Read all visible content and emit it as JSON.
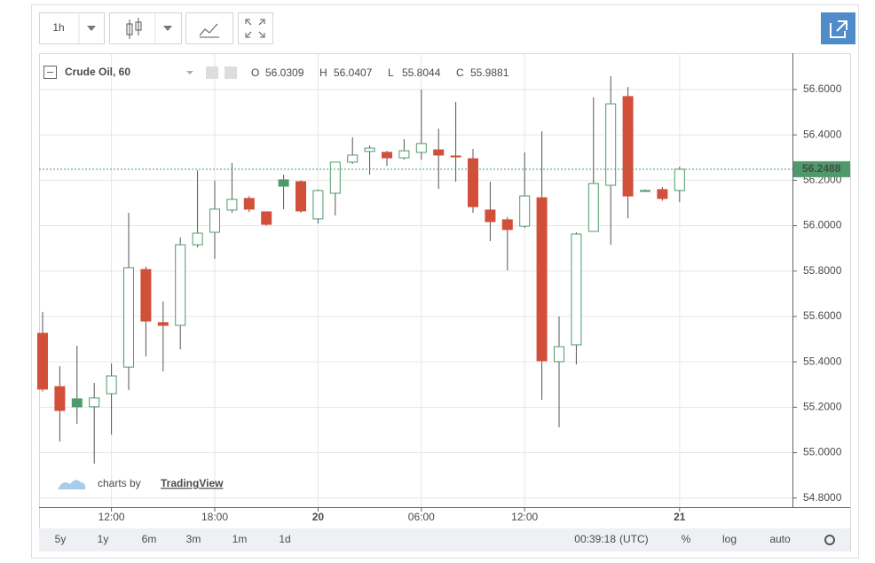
{
  "toolbar": {
    "interval": "1h"
  },
  "chart_data": {
    "type": "candlestick",
    "title": "Crude Oil, 60",
    "ohlc_legend": [
      {
        "label": "O",
        "value": 56.0309
      },
      {
        "label": "H",
        "value": 56.0407
      },
      {
        "label": "L",
        "value": 55.8044
      },
      {
        "label": "C",
        "value": 55.9881
      }
    ],
    "categories": [
      null,
      null,
      null,
      null,
      "12:00",
      null,
      null,
      null,
      null,
      null,
      "18:00",
      null,
      null,
      null,
      null,
      null,
      "20",
      null,
      null,
      null,
      null,
      null,
      "06:00",
      null,
      null,
      null,
      null,
      null,
      "12:00",
      null,
      null,
      null,
      null,
      null,
      null,
      null,
      null,
      "21"
    ],
    "open": [
      55.526,
      55.291,
      55.237,
      55.202,
      55.26,
      55.377,
      55.807,
      55.573,
      55.561,
      55.916,
      55.971,
      56.069,
      56.12,
      56.061,
      56.202,
      56.194,
      56.03,
      56.143,
      56.28,
      56.327,
      56.323,
      56.299,
      56.323,
      56.334,
      56.307,
      56.295,
      56.069,
      56.026,
      55.998,
      56.123,
      55.401,
      55.475,
      55.975,
      56.178,
      56.569,
      56.155,
      56.159,
      56.155
    ],
    "high": [
      55.62,
      55.381,
      55.471,
      55.307,
      55.393,
      56.057,
      55.82,
      55.666,
      55.948,
      56.244,
      56.198,
      56.276,
      56.13,
      56.061,
      56.225,
      56.2,
      56.16,
      56.28,
      56.389,
      56.354,
      56.33,
      56.381,
      56.6,
      56.428,
      56.545,
      56.338,
      56.194,
      56.038,
      56.323,
      56.416,
      55.6,
      55.971,
      56.565,
      56.659,
      56.611,
      56.16,
      56.17,
      56.26
    ],
    "low": [
      55.27,
      55.049,
      55.127,
      54.952,
      55.08,
      55.276,
      55.424,
      55.358,
      55.455,
      55.905,
      55.854,
      56.057,
      56.06,
      56.0,
      56.073,
      56.057,
      56.01,
      56.045,
      56.272,
      56.225,
      56.264,
      56.291,
      56.291,
      56.162,
      56.194,
      56.057,
      55.932,
      55.803,
      55.99,
      55.233,
      55.112,
      55.389,
      55.975,
      55.916,
      56.033,
      56.15,
      56.11,
      56.104
    ],
    "close": [
      55.28,
      55.186,
      55.202,
      55.241,
      55.338,
      55.815,
      55.58,
      55.561,
      55.916,
      55.967,
      56.073,
      56.116,
      56.073,
      56.006,
      56.174,
      56.065,
      56.155,
      56.28,
      56.311,
      56.342,
      56.299,
      56.33,
      56.362,
      56.311,
      56.303,
      56.084,
      56.018,
      55.983,
      56.131,
      55.405,
      55.467,
      55.963,
      56.186,
      56.537,
      56.131,
      56.153,
      56.12,
      56.2488
    ],
    "up_color": "#4e9a6a",
    "down_color": "#d24f3a",
    "ylim": [
      54.76,
      56.76
    ],
    "yticks": [
      {
        "value": 54.8,
        "label": "54.8000"
      },
      {
        "value": 55.0,
        "label": "55.0000"
      },
      {
        "value": 55.2,
        "label": "55.2000"
      },
      {
        "value": 55.4,
        "label": "55.4000"
      },
      {
        "value": 55.6,
        "label": "55.6000"
      },
      {
        "value": 55.8,
        "label": "55.8000"
      },
      {
        "value": 56.0,
        "label": "56.0000"
      },
      {
        "value": 56.2,
        "label": "56.2000"
      },
      {
        "value": 56.4,
        "label": "56.4000"
      },
      {
        "value": 56.6,
        "label": "56.6000"
      }
    ],
    "grid": true,
    "last_price": 56.2488,
    "watermark": {
      "prefix": "charts by",
      "brand": "TradingView"
    }
  },
  "bottom_bar": {
    "ranges": [
      "5y",
      "1y",
      "6m",
      "3m",
      "1m",
      "1d"
    ],
    "clock": "00:39:18",
    "timezone": "(UTC)",
    "percent": "%",
    "log": "log",
    "auto": "auto"
  }
}
